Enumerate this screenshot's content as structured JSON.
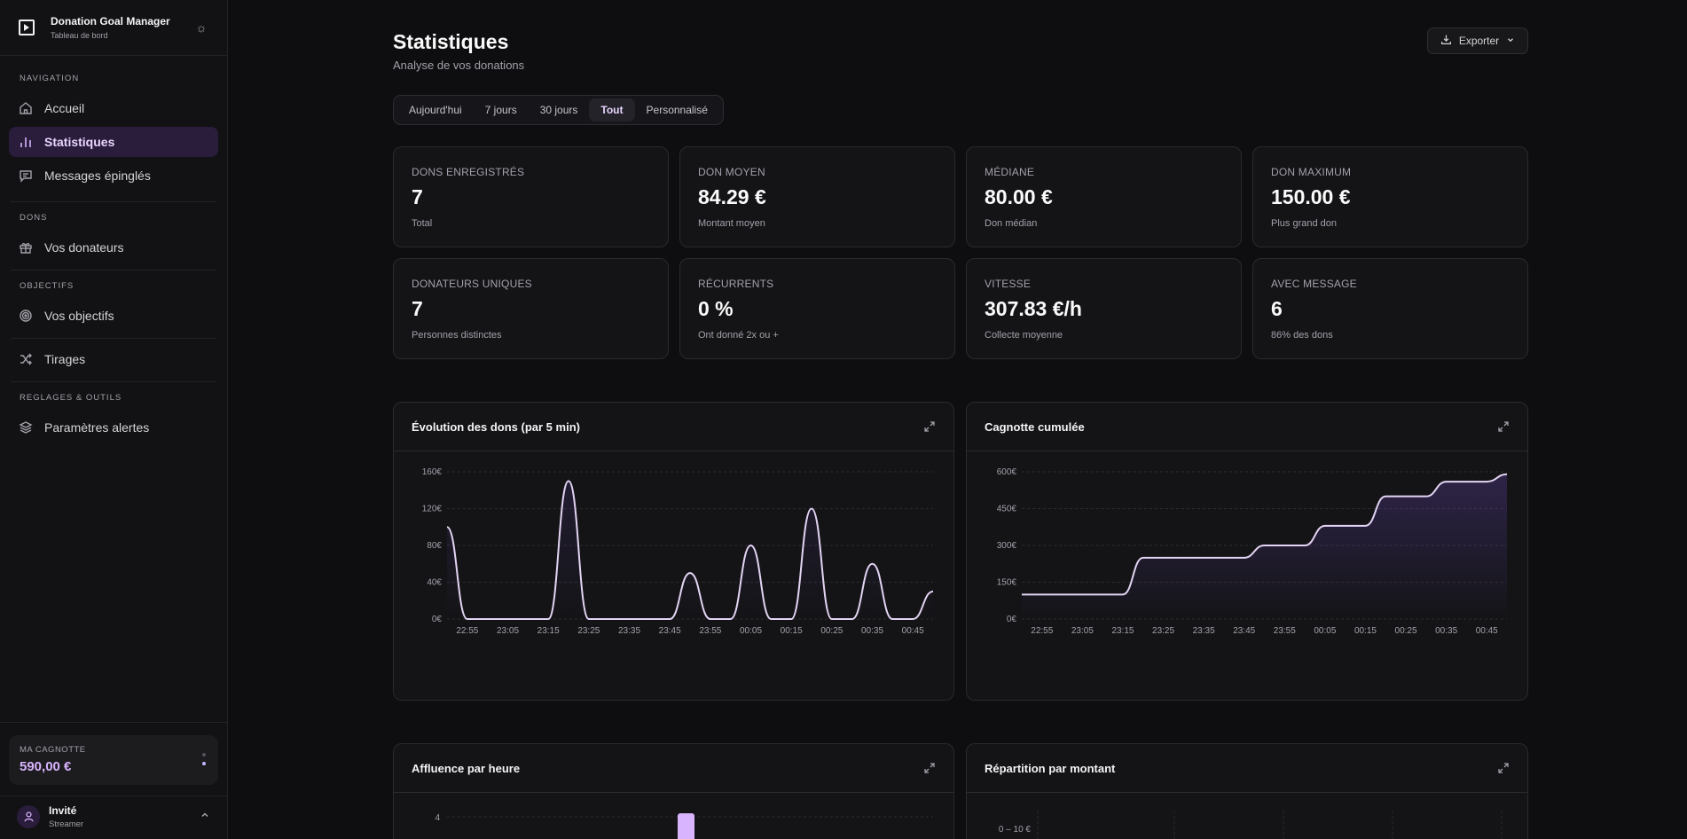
{
  "sidebar": {
    "brand_title": "Donation Goal Manager",
    "brand_sub": "Tableau de bord",
    "sections": {
      "navigation": "NAVIGATION",
      "dons": "DONS",
      "objectifs": "OBJECTIFS",
      "reglages": "REGLAGES & OUTILS"
    },
    "items": {
      "accueil": "Accueil",
      "statistiques": "Statistiques",
      "messages": "Messages épinglés",
      "donateurs": "Vos donateurs",
      "objectifs": "Vos objectifs",
      "tirages": "Tirages",
      "parametres": "Paramètres alertes"
    },
    "wallet_label": "MA CAGNOTTE",
    "wallet_value": "590,00 €",
    "user_name": "Invité",
    "user_role": "Streamer"
  },
  "header": {
    "title": "Statistiques",
    "subtitle": "Analyse de vos donations",
    "export_label": "Exporter"
  },
  "tabs": [
    "Aujourd'hui",
    "7 jours",
    "30 jours",
    "Tout",
    "Personnalisé"
  ],
  "active_tab": "Tout",
  "stats": [
    {
      "label": "DONS ENREGISTRÉS",
      "value": "7",
      "sub": "Total"
    },
    {
      "label": "DON MOYEN",
      "value": "84.29 €",
      "sub": "Montant moyen"
    },
    {
      "label": "MÉDIANE",
      "value": "80.00 €",
      "sub": "Don médian"
    },
    {
      "label": "DON MAXIMUM",
      "value": "150.00 €",
      "sub": "Plus grand don"
    },
    {
      "label": "DONATEURS UNIQUES",
      "value": "7",
      "sub": "Personnes distinctes"
    },
    {
      "label": "RÉCURRENTS",
      "value": "0 %",
      "sub": "Ont donné 2x ou +"
    },
    {
      "label": "VITESSE",
      "value": "307.83 €/h",
      "sub": "Collecte moyenne"
    },
    {
      "label": "AVEC MESSAGE",
      "value": "6",
      "sub": "86% des dons"
    }
  ],
  "panels": {
    "evolution": "Évolution des dons (par 5 min)",
    "cumul": "Cagnotte cumulée",
    "affluence": "Affluence par heure",
    "repartition": "Répartition par montant"
  },
  "colors": {
    "accent": "#d8b4fe",
    "line": "#e4d4f4"
  },
  "chart_data": [
    {
      "type": "line",
      "title": "Évolution des dons (par 5 min)",
      "x": [
        "22:50",
        "22:55",
        "23:00",
        "23:05",
        "23:10",
        "23:15",
        "23:20",
        "23:25",
        "23:30",
        "23:35",
        "23:40",
        "23:45",
        "23:50",
        "23:55",
        "00:00",
        "00:05",
        "00:10",
        "00:15",
        "00:20",
        "00:25",
        "00:30",
        "00:35",
        "00:40",
        "00:45",
        "00:50"
      ],
      "x_ticks": [
        "22:55",
        "23:05",
        "23:15",
        "23:25",
        "23:35",
        "23:45",
        "23:55",
        "00:05",
        "00:15",
        "00:25",
        "00:35",
        "00:45"
      ],
      "values": [
        100,
        0,
        0,
        0,
        0,
        0,
        150,
        0,
        0,
        0,
        0,
        0,
        50,
        0,
        0,
        80,
        0,
        0,
        120,
        0,
        0,
        60,
        0,
        0,
        30
      ],
      "y_ticks": [
        "0€",
        "40€",
        "80€",
        "120€",
        "160€"
      ],
      "ylim": [
        0,
        160
      ]
    },
    {
      "type": "area",
      "title": "Cagnotte cumulée",
      "x": [
        "22:50",
        "22:55",
        "23:00",
        "23:05",
        "23:10",
        "23:15",
        "23:20",
        "23:25",
        "23:30",
        "23:35",
        "23:40",
        "23:45",
        "23:50",
        "23:55",
        "00:00",
        "00:05",
        "00:10",
        "00:15",
        "00:20",
        "00:25",
        "00:30",
        "00:35",
        "00:40",
        "00:45",
        "00:50"
      ],
      "x_ticks": [
        "22:55",
        "23:05",
        "23:15",
        "23:25",
        "23:35",
        "23:45",
        "23:55",
        "00:05",
        "00:15",
        "00:25",
        "00:35",
        "00:45"
      ],
      "values": [
        100,
        100,
        100,
        100,
        100,
        100,
        250,
        250,
        250,
        250,
        250,
        250,
        300,
        300,
        300,
        380,
        380,
        380,
        500,
        500,
        500,
        560,
        560,
        560,
        590
      ],
      "y_ticks": [
        "0€",
        "150€",
        "300€",
        "450€",
        "600€"
      ],
      "ylim": [
        0,
        600
      ]
    },
    {
      "type": "bar",
      "title": "Affluence par heure",
      "y_ticks": [
        "4"
      ],
      "values": [
        4
      ]
    },
    {
      "type": "bar",
      "title": "Répartition par montant",
      "categories": [
        "0 – 10 €"
      ]
    }
  ]
}
